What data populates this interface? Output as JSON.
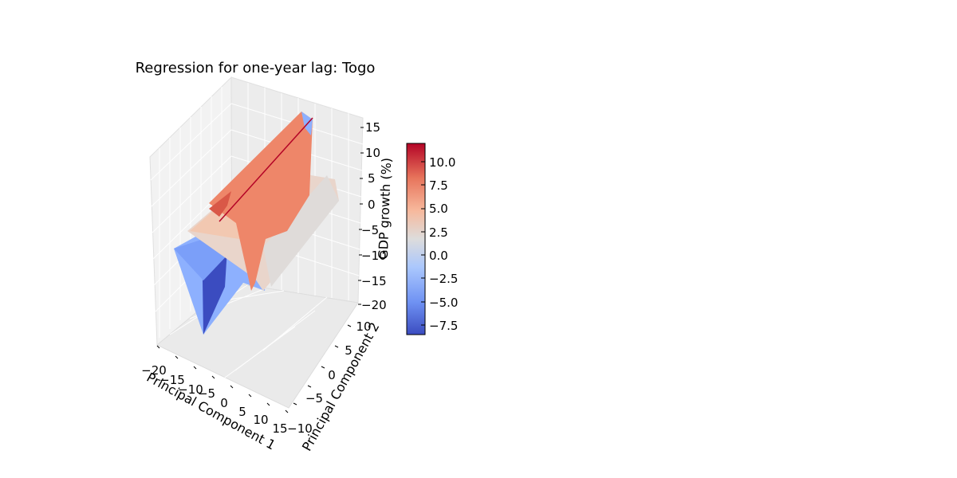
{
  "chart_data": {
    "type": "surface3d",
    "title": "Regression for one-year lag: Togo",
    "xlabel": "Principal Component 1",
    "ylabel": "Principal Component 2",
    "zlabel": "GDP growth (%)",
    "x_ticks": [
      "−20",
      "−15",
      "−10",
      "−5",
      "0",
      "5",
      "10",
      "15"
    ],
    "y_ticks": [
      "−10",
      "−5",
      "0",
      "5",
      "10"
    ],
    "z_ticks": [
      "15",
      "10",
      "5",
      "0",
      "−5",
      "−10",
      "−15",
      "−20"
    ],
    "xlim": [
      -20,
      15
    ],
    "ylim": [
      -10,
      10
    ],
    "zlim": [
      -20,
      15
    ],
    "grid": true,
    "colormap": "coolwarm",
    "colorbar": {
      "range": [
        -8.5,
        12
      ],
      "ticks": [
        "10.0",
        "7.5",
        "5.0",
        "2.5",
        "0.0",
        "−2.5",
        "−5.0",
        "−7.5"
      ],
      "colors": [
        "#3b4cc0",
        "#6f92f3",
        "#aac7fd",
        "#dddcdc",
        "#f7b89c",
        "#e7745b",
        "#b40426"
      ]
    }
  }
}
